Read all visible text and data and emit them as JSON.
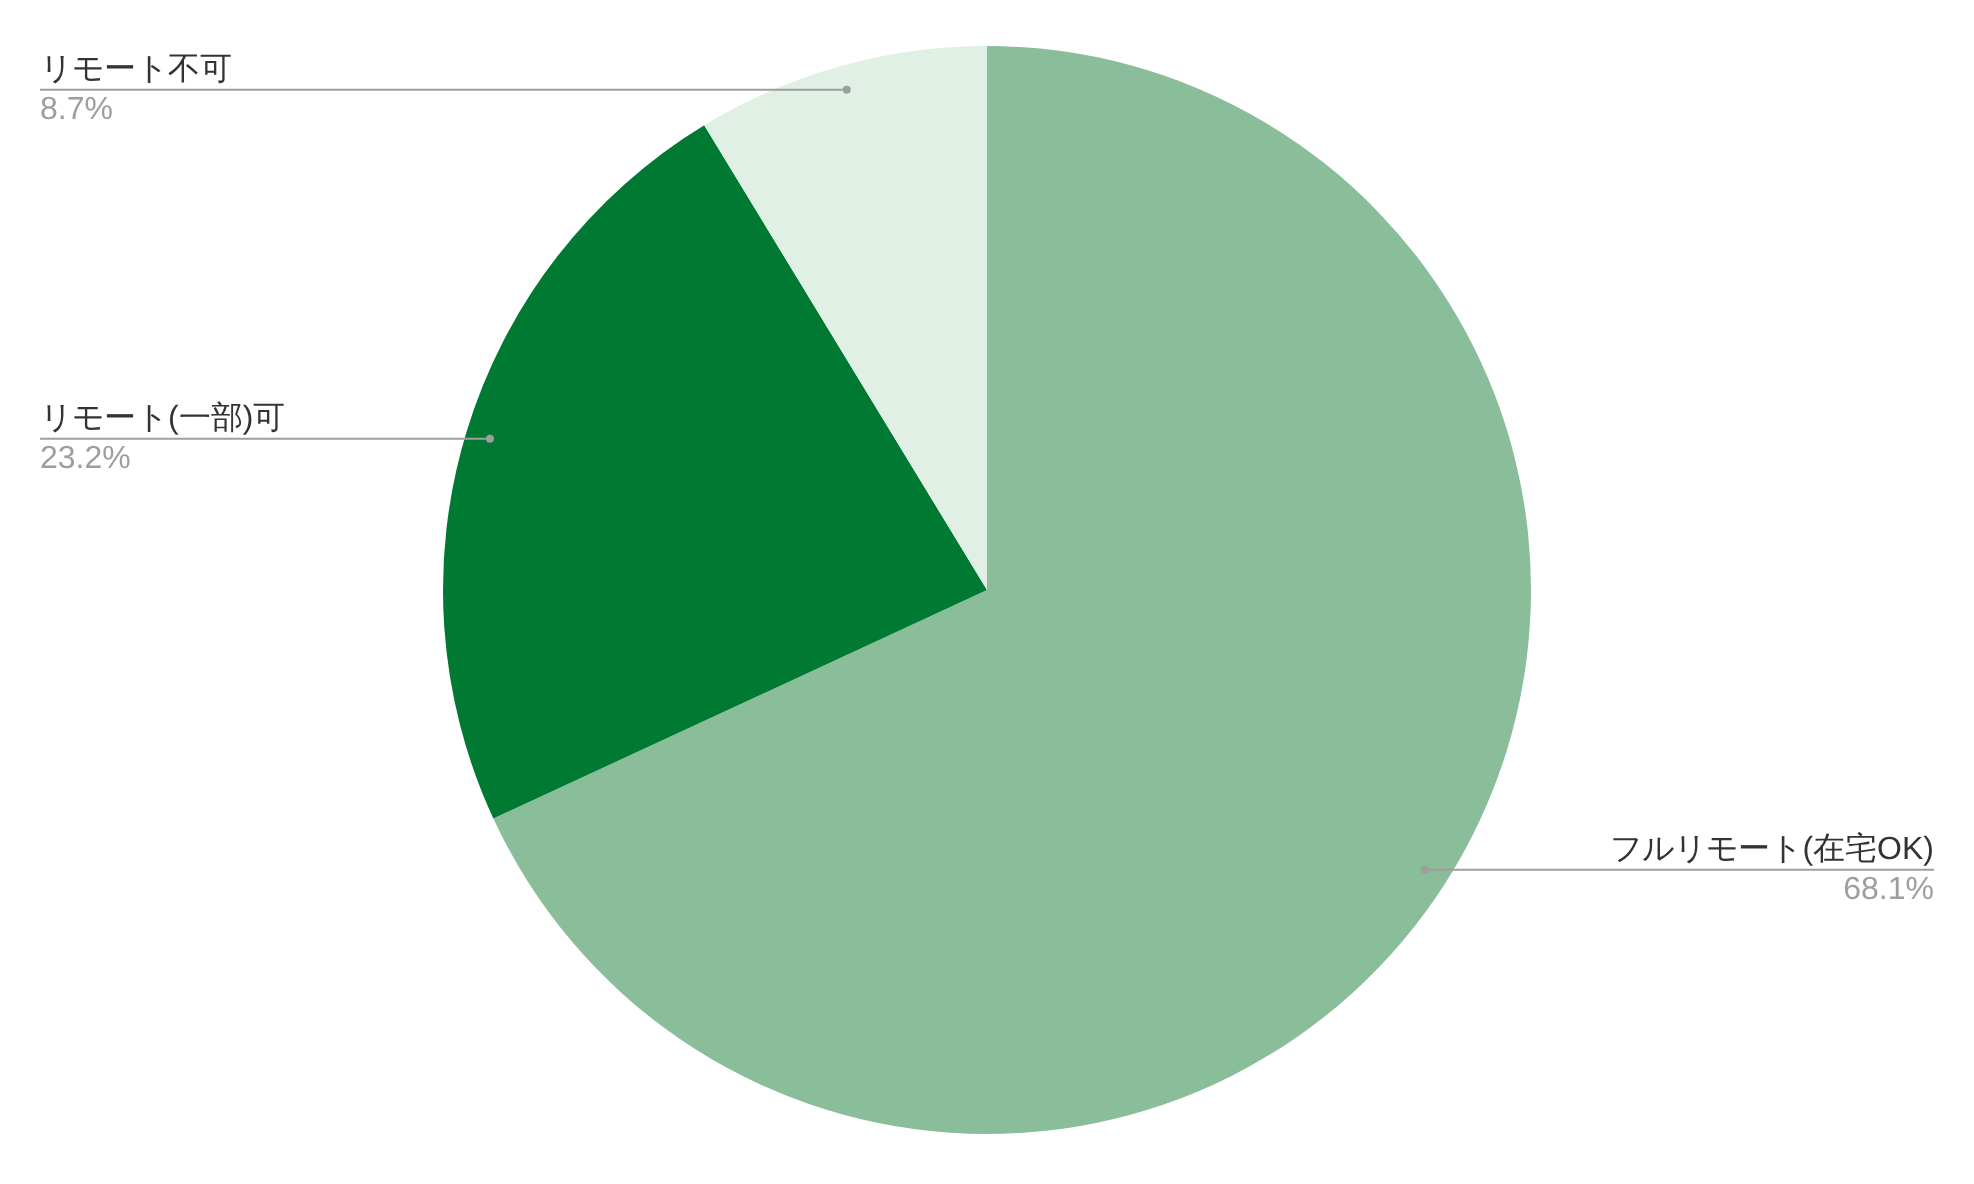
{
  "chart_data": {
    "type": "pie",
    "categories": [
      "フルリモート(在宅OK)",
      "リモート(一部)可",
      "リモート不可"
    ],
    "values": [
      68.1,
      23.2,
      8.7
    ],
    "colors": [
      "#8abd9a",
      "#007a33",
      "#e0f0e4"
    ],
    "value_labels": [
      "68.1%",
      "23.2%",
      "8.7%"
    ],
    "legend": false
  }
}
